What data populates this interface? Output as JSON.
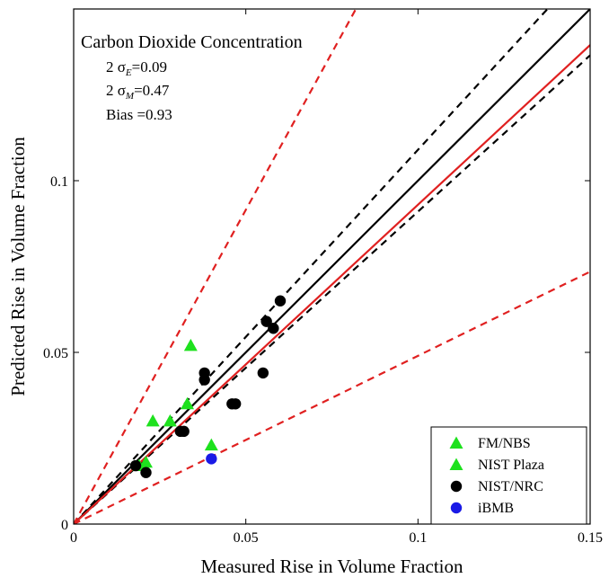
{
  "chart_data": {
    "type": "scatter",
    "title": "Carbon Dioxide Concentration",
    "xlabel": "Measured Rise in Volume Fraction",
    "ylabel": "Predicted Rise in Volume Fraction",
    "xlim": [
      0,
      0.15
    ],
    "ylim": [
      0,
      0.15
    ],
    "xticks": [
      0,
      0.05,
      0.1,
      0.15
    ],
    "xtick_labels": [
      "0",
      "0.05",
      "0.1",
      "0.15"
    ],
    "yticks": [
      0,
      0.05,
      0.1
    ],
    "ytick_labels": [
      "0",
      "0.05",
      "0.1"
    ],
    "grid": false,
    "legend_position": "bottom-right",
    "annotations": {
      "sigma_e_symbol": "2 σ",
      "sigma_e_sub": "E",
      "sigma_e_value": "=0.09",
      "sigma_m_symbol": "2 σ",
      "sigma_m_sub": "M",
      "sigma_m_value": "=0.47",
      "bias": "Bias =0.93"
    },
    "reference_lines": [
      {
        "style": "solid",
        "color": "#000000",
        "slope": 1.0
      },
      {
        "style": "dashed",
        "color": "#000000",
        "slope": 1.09
      },
      {
        "style": "dashed",
        "color": "#000000",
        "slope": 0.91
      },
      {
        "style": "solid",
        "color": "#e02020",
        "slope": 0.93
      },
      {
        "style": "dashed",
        "color": "#e02020",
        "slope": 1.83
      },
      {
        "style": "dashed",
        "color": "#e02020",
        "slope": 0.49
      }
    ],
    "series": [
      {
        "name": "FM/NBS",
        "marker": "triangle",
        "color": "#1ee11e",
        "x": [
          0.034,
          0.023,
          0.028,
          0.033,
          0.04
        ],
        "y": [
          0.052,
          0.03,
          0.03,
          0.035,
          0.023
        ]
      },
      {
        "name": "NIST Plaza",
        "marker": "triangle",
        "color": "#1ee11e",
        "x": [
          0.019,
          0.021
        ],
        "y": [
          0.017,
          0.018
        ]
      },
      {
        "name": "NIST/NRC",
        "marker": "circle",
        "color": "#000000",
        "x": [
          0.06,
          0.056,
          0.058,
          0.038,
          0.038,
          0.055,
          0.046,
          0.047,
          0.031,
          0.032,
          0.021,
          0.018
        ],
        "y": [
          0.065,
          0.059,
          0.057,
          0.044,
          0.042,
          0.044,
          0.035,
          0.035,
          0.027,
          0.027,
          0.015,
          0.017
        ]
      },
      {
        "name": "iBMB",
        "marker": "circle",
        "color": "#1a1ae6",
        "x": [
          0.04
        ],
        "y": [
          0.019
        ]
      }
    ]
  }
}
